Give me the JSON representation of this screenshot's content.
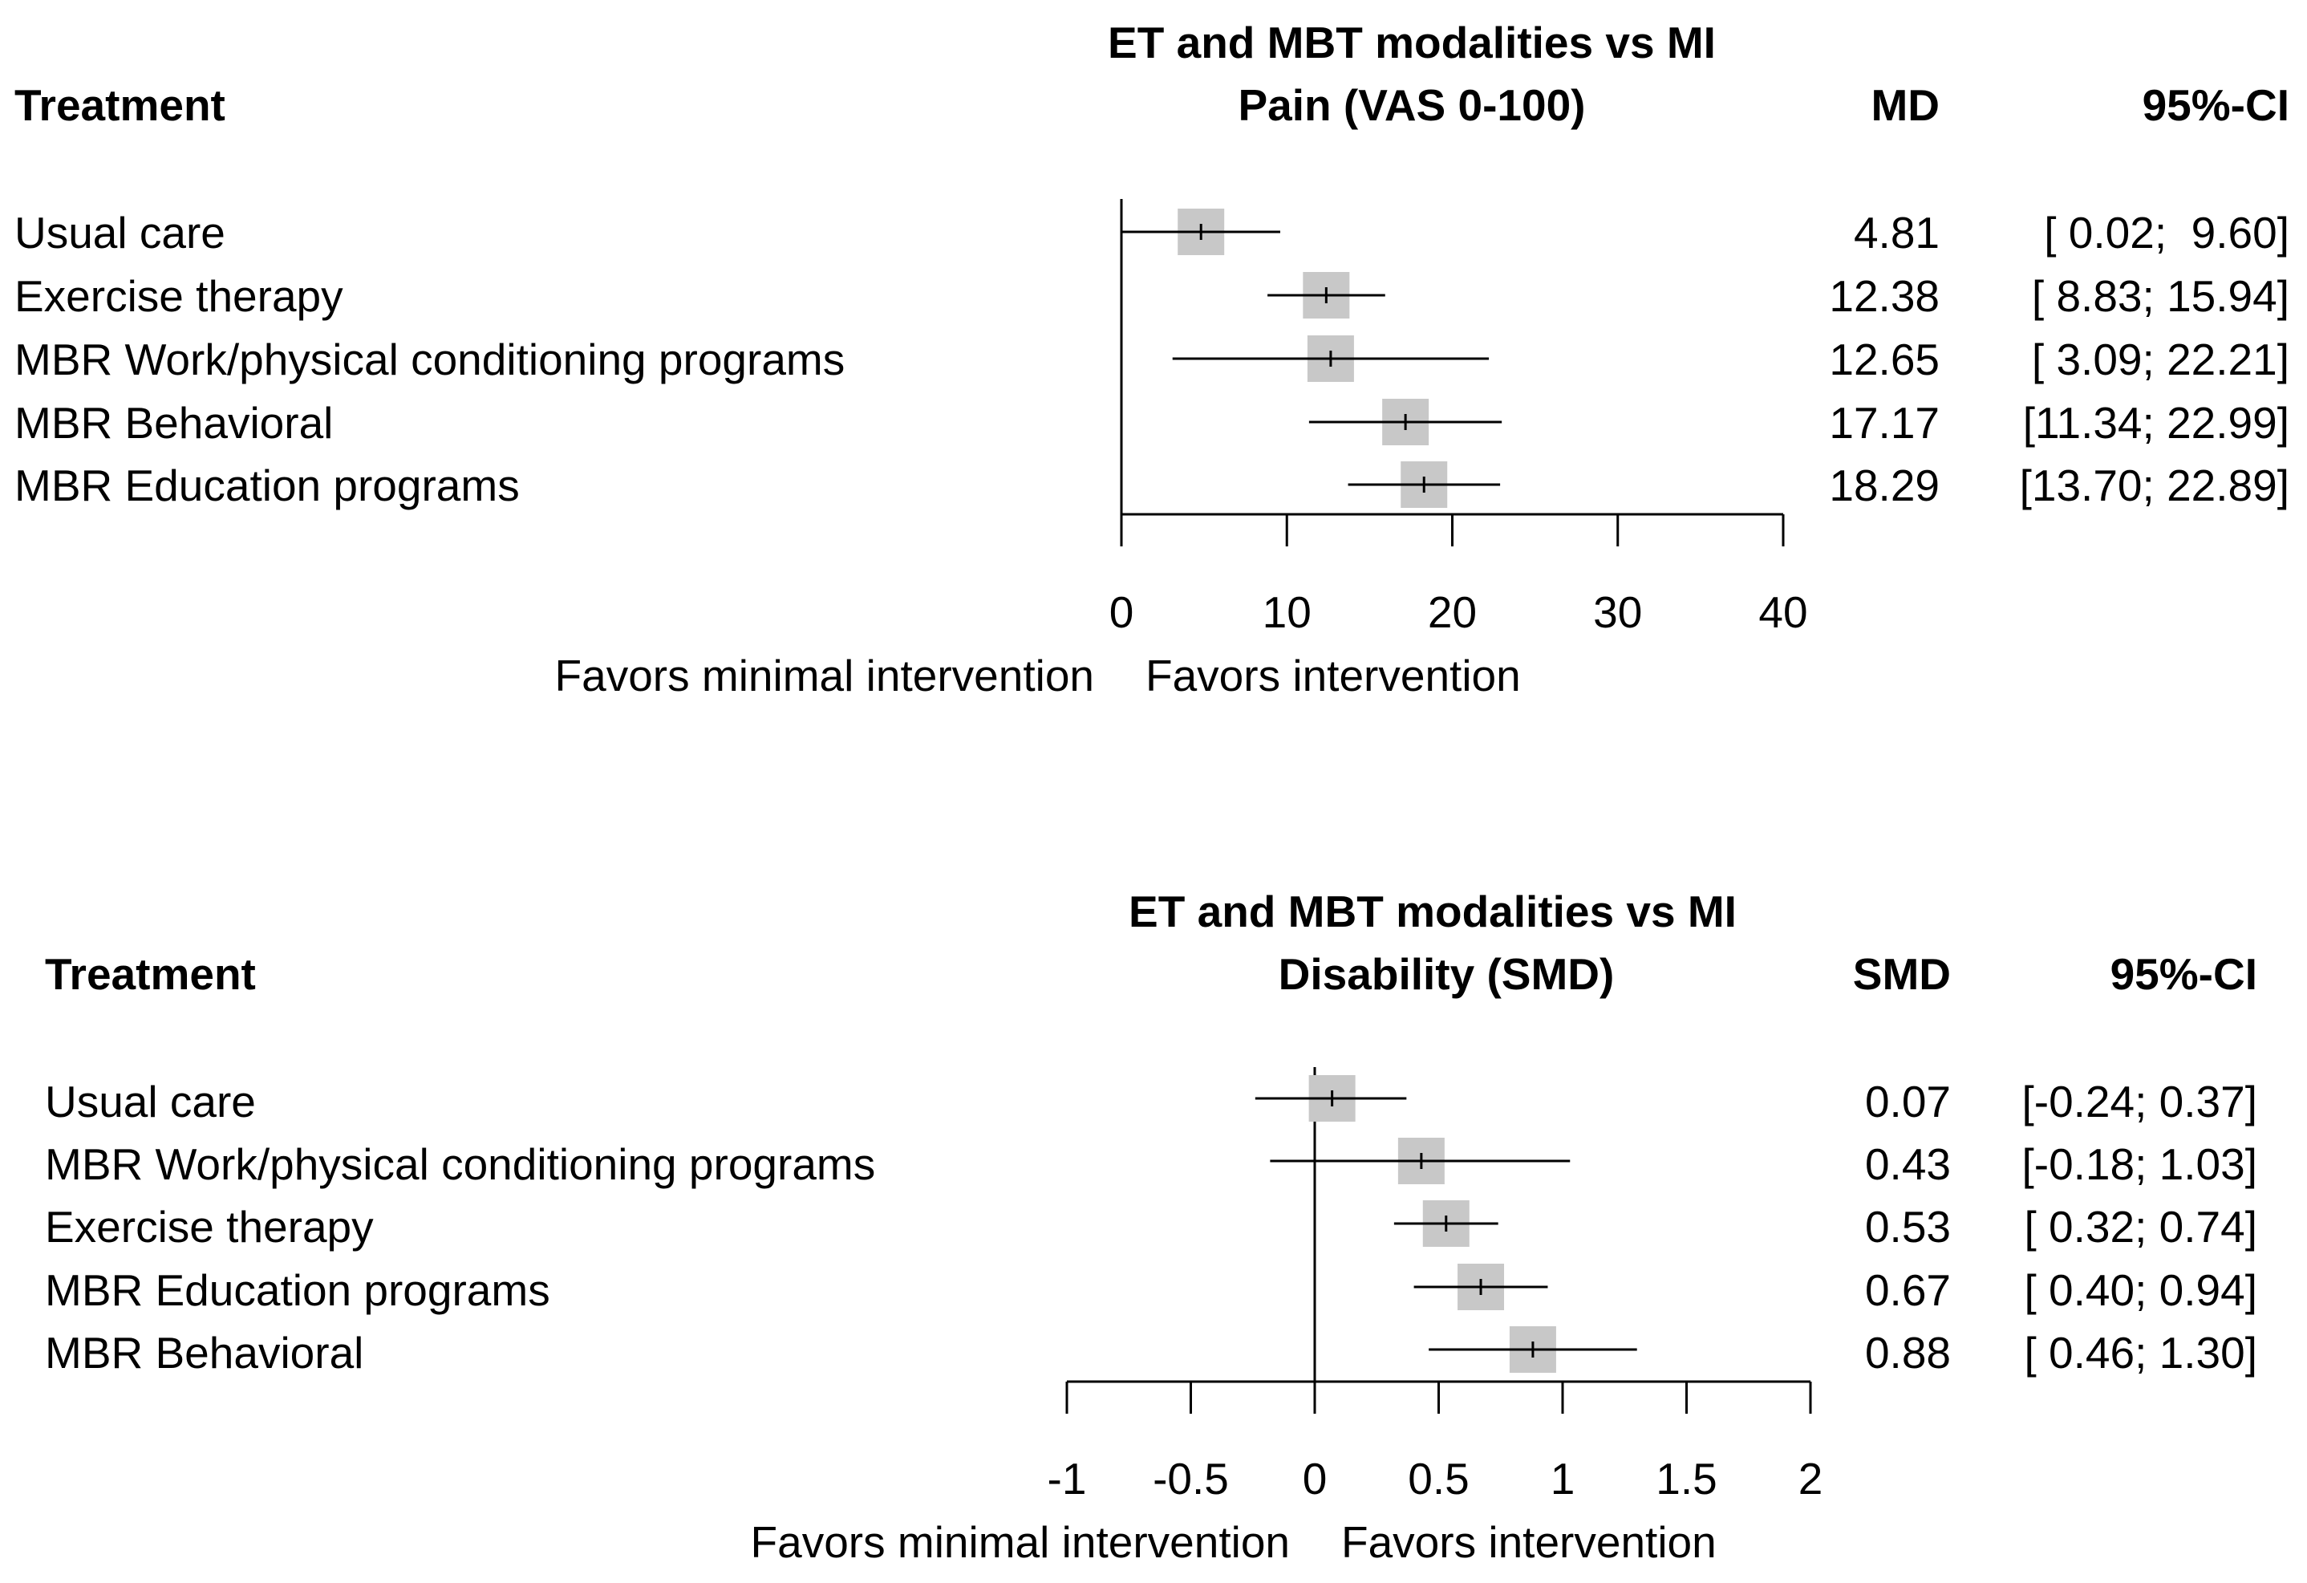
{
  "chart_data": [
    {
      "type": "forest",
      "title_line1": "ET and MBT modalities vs MI",
      "title_line2": "Pain (VAS 0-100)",
      "col_treatment": "Treatment",
      "col_effect": "MD",
      "col_ci": "95%-CI",
      "xlim": [
        0,
        40
      ],
      "ticks": [
        0,
        10,
        20,
        30,
        40
      ],
      "tick_labels": [
        "0",
        "10",
        "20",
        "30",
        "40"
      ],
      "reference_line": 0,
      "label_left": "Favors minimal intervention",
      "label_right": "Favors intervention",
      "rows": [
        {
          "name": "Usual care",
          "est": 4.81,
          "lo": 0.02,
          "hi": 9.6,
          "est_text": "4.81",
          "ci_text": "[ 0.02;  9.60]"
        },
        {
          "name": "Exercise therapy",
          "est": 12.38,
          "lo": 8.83,
          "hi": 15.94,
          "est_text": "12.38",
          "ci_text": "[ 8.83; 15.94]"
        },
        {
          "name": "MBR Work/physical conditioning programs",
          "est": 12.65,
          "lo": 3.09,
          "hi": 22.21,
          "est_text": "12.65",
          "ci_text": "[ 3.09; 22.21]"
        },
        {
          "name": "MBR Behavioral",
          "est": 17.17,
          "lo": 11.34,
          "hi": 22.99,
          "est_text": "17.17",
          "ci_text": "[11.34; 22.99]"
        },
        {
          "name": "MBR Education programs",
          "est": 18.29,
          "lo": 13.7,
          "hi": 22.89,
          "est_text": "18.29",
          "ci_text": "[13.70; 22.89]"
        }
      ]
    },
    {
      "type": "forest",
      "title_line1": "ET and MBT modalities vs MI",
      "title_line2": "Disability (SMD)",
      "col_treatment": "Treatment",
      "col_effect": "SMD",
      "col_ci": "95%-CI",
      "xlim": [
        -1,
        2
      ],
      "ticks": [
        -1,
        -0.5,
        0,
        0.5,
        1,
        1.5,
        2
      ],
      "tick_labels": [
        "-1",
        "-0.5",
        "0",
        "0.5",
        "1",
        "1.5",
        "2"
      ],
      "reference_line": 0,
      "label_left": "Favors minimal intervention",
      "label_right": "Favors intervention",
      "rows": [
        {
          "name": "Usual care",
          "est": 0.07,
          "lo": -0.24,
          "hi": 0.37,
          "est_text": "0.07",
          "ci_text": "[-0.24; 0.37]"
        },
        {
          "name": "MBR Work/physical conditioning programs",
          "est": 0.43,
          "lo": -0.18,
          "hi": 1.03,
          "est_text": "0.43",
          "ci_text": "[-0.18; 1.03]"
        },
        {
          "name": "Exercise therapy",
          "est": 0.53,
          "lo": 0.32,
          "hi": 0.74,
          "est_text": "0.53",
          "ci_text": "[ 0.32; 0.74]"
        },
        {
          "name": "MBR Education programs",
          "est": 0.67,
          "lo": 0.4,
          "hi": 0.94,
          "est_text": "0.67",
          "ci_text": "[ 0.40; 0.94]"
        },
        {
          "name": "MBR Behavioral",
          "est": 0.88,
          "lo": 0.46,
          "hi": 1.3,
          "est_text": "0.88",
          "ci_text": "[ 0.46; 1.30]"
        }
      ]
    }
  ],
  "colors": {
    "box_fill": "#c8c8c8",
    "line": "#000000"
  }
}
